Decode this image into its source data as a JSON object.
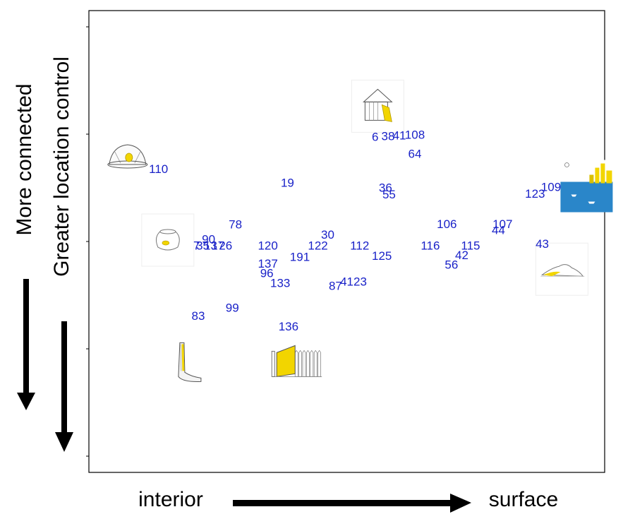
{
  "chart_data": {
    "type": "scatter",
    "title": "",
    "xlabel_left": "interior",
    "xlabel_right": "surface",
    "ylabel_outer": "More connected",
    "ylabel_inner": "Greater location control",
    "xlim": [
      0,
      100
    ],
    "ylim": [
      0,
      100
    ],
    "marker_color": "#1a22c8",
    "points": [
      {
        "label": "110",
        "x": 13.5,
        "y": 65.5
      },
      {
        "label": "19",
        "x": 38.5,
        "y": 62.5
      },
      {
        "label": "6",
        "x": 55.5,
        "y": 72.5
      },
      {
        "label": "38",
        "x": 58,
        "y": 72.6
      },
      {
        "label": "41",
        "x": 60.2,
        "y": 72.8
      },
      {
        "label": "108",
        "x": 63.2,
        "y": 72.9
      },
      {
        "label": "64",
        "x": 63.2,
        "y": 68.8
      },
      {
        "label": "36",
        "x": 57.5,
        "y": 61.5
      },
      {
        "label": "55",
        "x": 58.2,
        "y": 60.0
      },
      {
        "label": "78",
        "x": 28.4,
        "y": 53.5
      },
      {
        "label": "30",
        "x": 46.3,
        "y": 51.3
      },
      {
        "label": "90",
        "x": 23.2,
        "y": 50.3
      },
      {
        "label": "7",
        "x": 20.9,
        "y": 48.9
      },
      {
        "label": "35",
        "x": 22.1,
        "y": 48.9
      },
      {
        "label": "13",
        "x": 23.6,
        "y": 48.9
      },
      {
        "label": "17",
        "x": 25.0,
        "y": 48.9
      },
      {
        "label": "26",
        "x": 26.5,
        "y": 48.9
      },
      {
        "label": "120",
        "x": 34.7,
        "y": 48.9
      },
      {
        "label": "122",
        "x": 44.4,
        "y": 48.9
      },
      {
        "label": "112",
        "x": 52.5,
        "y": 48.9
      },
      {
        "label": "116",
        "x": 66.2,
        "y": 48.9
      },
      {
        "label": "115",
        "x": 74.0,
        "y": 48.9
      },
      {
        "label": "43",
        "x": 87.9,
        "y": 49.3
      },
      {
        "label": "107",
        "x": 80.2,
        "y": 53.6
      },
      {
        "label": "44",
        "x": 79.4,
        "y": 52.3
      },
      {
        "label": "106",
        "x": 69.4,
        "y": 53.6
      },
      {
        "label": "123",
        "x": 86.5,
        "y": 60.2
      },
      {
        "label": "109",
        "x": 89.6,
        "y": 61.6
      },
      {
        "label": "137",
        "x": 34.7,
        "y": 45.0
      },
      {
        "label": "96",
        "x": 34.5,
        "y": 43.0
      },
      {
        "label": "191",
        "x": 40.9,
        "y": 46.5
      },
      {
        "label": "125",
        "x": 56.8,
        "y": 46.7
      },
      {
        "label": "42",
        "x": 72.3,
        "y": 46.9
      },
      {
        "label": "56",
        "x": 70.3,
        "y": 44.8
      },
      {
        "label": "133",
        "x": 37.1,
        "y": 40.8
      },
      {
        "label": "87",
        "x": 47.8,
        "y": 40.2
      },
      {
        "label": "4123",
        "x": 51.3,
        "y": 41.1
      },
      {
        "label": "99",
        "x": 27.8,
        "y": 35.5
      },
      {
        "label": "83",
        "x": 21.2,
        "y": 33.7
      },
      {
        "label": "136",
        "x": 38.7,
        "y": 31.4
      }
    ],
    "images": [
      {
        "name": "helmet-icon",
        "x": 7.5,
        "y": 68.5
      },
      {
        "name": "shed-icon",
        "x": 56.0,
        "y": 79.3
      },
      {
        "name": "harbor-city-icon",
        "x": 96.5,
        "y": 62.0
      },
      {
        "name": "fishbowl-icon",
        "x": 15.3,
        "y": 50.3
      },
      {
        "name": "island-icon",
        "x": 91.7,
        "y": 44.0
      },
      {
        "name": "leg-icon",
        "x": 19.0,
        "y": 23.8
      },
      {
        "name": "gate-fence-icon",
        "x": 39.7,
        "y": 23.8
      }
    ]
  }
}
